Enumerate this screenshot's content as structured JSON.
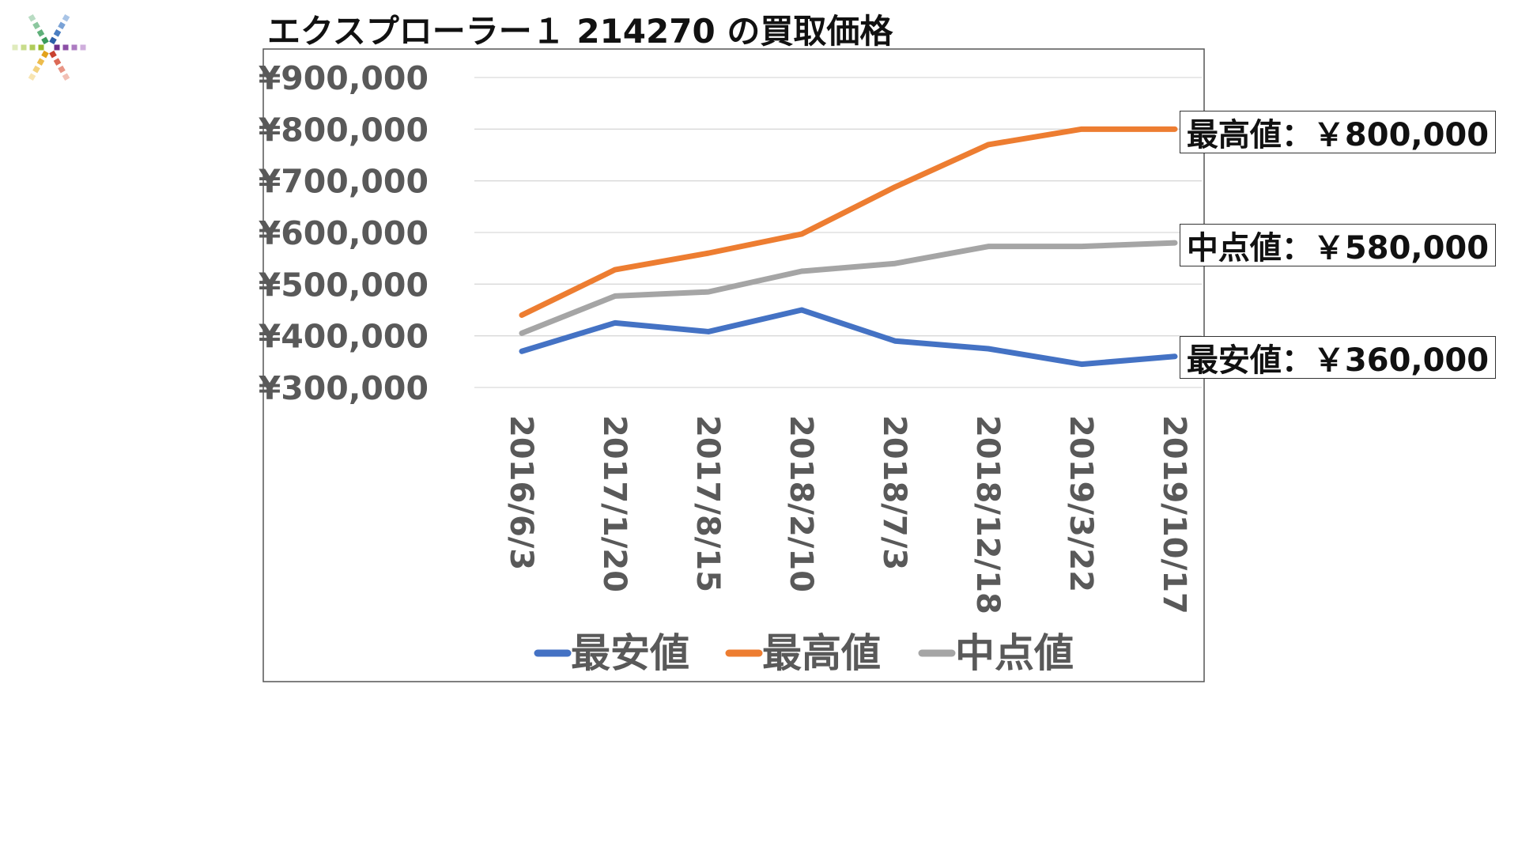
{
  "chart_data": {
    "type": "line",
    "title": "エクスプローラー１ 214270 の買取価格",
    "categories": [
      "2016/6/3",
      "2017/1/20",
      "2017/8/15",
      "2018/2/10",
      "2018/7/3",
      "2018/12/18",
      "2019/3/22",
      "2019/10/17"
    ],
    "series": [
      {
        "name": "最安値",
        "color": "#4472C4",
        "values": [
          370000,
          425000,
          408000,
          450000,
          390000,
          375000,
          345000,
          360000
        ]
      },
      {
        "name": "最高値",
        "color": "#ED7D31",
        "values": [
          440000,
          528000,
          560000,
          597000,
          688000,
          770000,
          800000,
          800000
        ]
      },
      {
        "name": "中点値",
        "color": "#A5A5A5",
        "values": [
          405000,
          477000,
          485000,
          525000,
          540000,
          573000,
          573000,
          580000
        ]
      }
    ],
    "y_ticks": [
      "¥300,000",
      "¥400,000",
      "¥500,000",
      "¥600,000",
      "¥700,000",
      "¥800,000",
      "¥900,000"
    ],
    "ylim": [
      300000,
      900000
    ],
    "grid": true,
    "legend": "bottom",
    "annotations": [
      "最高値：￥800,000",
      "中点値：￥580,000",
      "最安値：￥360,000"
    ]
  }
}
